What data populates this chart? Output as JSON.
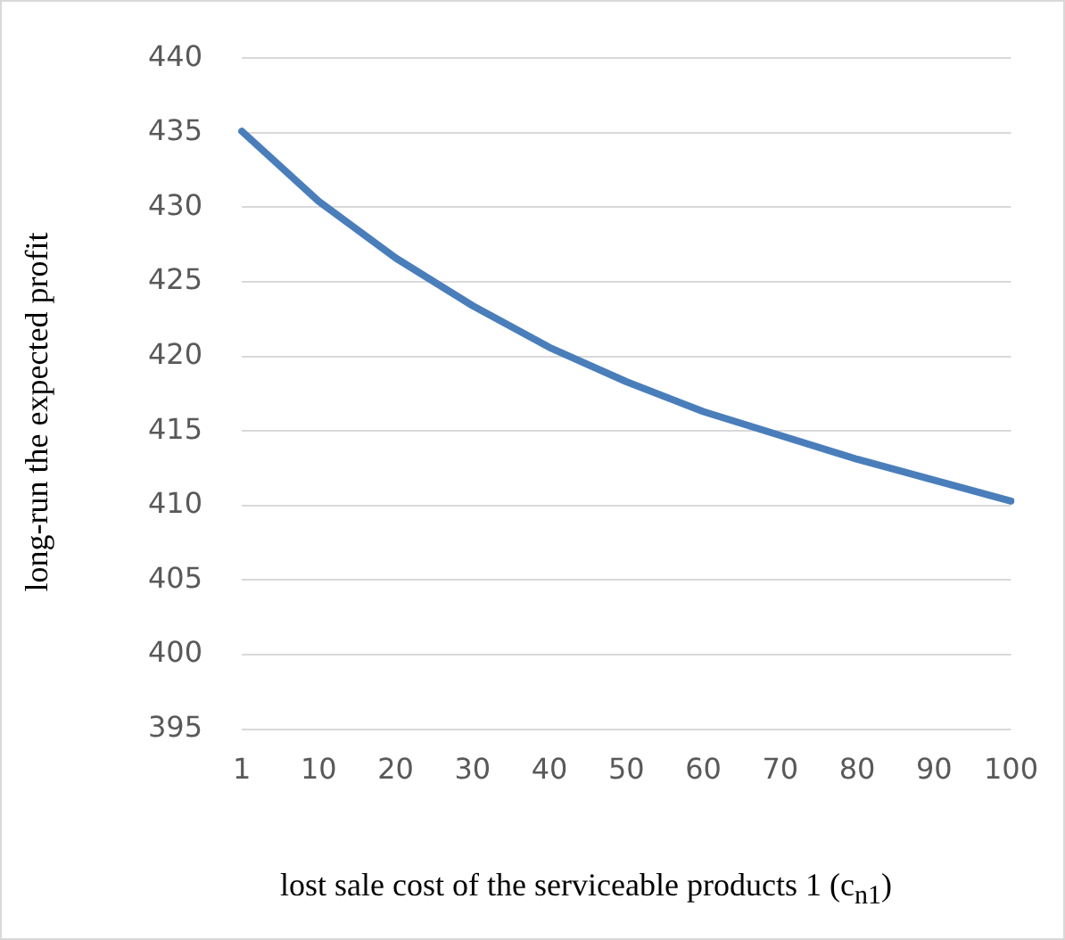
{
  "chart_data": {
    "type": "line",
    "xlabel": "lost sale cost of the serviceable products 1 (c$_{n1}$)",
    "ylabel": "long-run the expected profit",
    "categories": [
      "1",
      "10",
      "20",
      "30",
      "40",
      "50",
      "60",
      "70",
      "80",
      "90",
      "100"
    ],
    "series": [
      {
        "color": "#4a7ebb",
        "values": [
          435.1,
          430.4,
          426.6,
          423.4,
          420.6,
          418.3,
          416.3,
          414.7,
          413.1,
          411.7,
          410.3
        ]
      }
    ],
    "ylim": [
      395,
      440
    ],
    "yticks": [
      395,
      400,
      405,
      410,
      415,
      420,
      425,
      430,
      435,
      440
    ],
    "grid": "y",
    "legend": false,
    "marker": "none",
    "line_style": "solid"
  }
}
